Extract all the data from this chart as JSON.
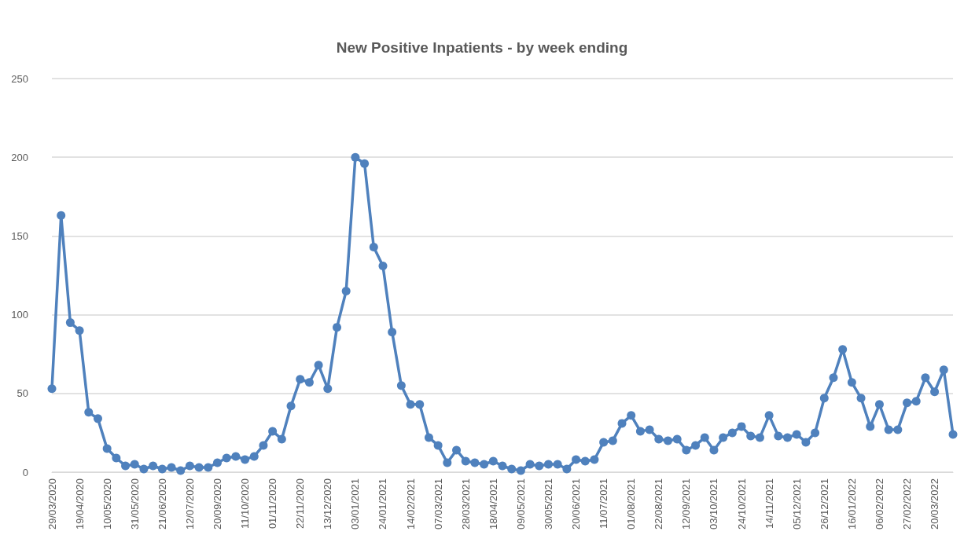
{
  "chart_data": {
    "type": "line",
    "title": "New Positive Inpatients - by week ending",
    "categories": [
      "29/03/2020",
      null,
      null,
      "19/04/2020",
      null,
      null,
      "10/05/2020",
      null,
      null,
      "31/05/2020",
      null,
      null,
      "21/06/2020",
      null,
      null,
      "12/07/2020",
      null,
      null,
      "20/09/2020",
      null,
      null,
      "11/10/2020",
      null,
      null,
      "01/11/2020",
      null,
      null,
      "22/11/2020",
      null,
      null,
      "13/12/2020",
      null,
      null,
      "03/01/2021",
      null,
      null,
      "24/01/2021",
      null,
      null,
      "14/02/2021",
      null,
      null,
      "07/03/2021",
      null,
      null,
      "28/03/2021",
      null,
      null,
      "18/04/2021",
      null,
      null,
      "09/05/2021",
      null,
      null,
      "30/05/2021",
      null,
      null,
      "20/06/2021",
      null,
      null,
      "11/07/2021",
      null,
      null,
      "01/08/2021",
      null,
      null,
      "22/08/2021",
      null,
      null,
      "12/09/2021",
      null,
      null,
      "03/10/2021",
      null,
      null,
      "24/10/2021",
      null,
      null,
      "14/11/2021",
      null,
      null,
      "05/12/2021",
      null,
      null,
      "26/12/2021",
      null,
      null,
      "16/01/2022",
      null,
      null,
      "06/02/2022",
      null,
      null,
      "27/02/2022",
      null,
      null,
      "20/03/2022",
      null,
      null
    ],
    "series": [
      {
        "color": "#4f81bd",
        "values": [
          53,
          163,
          95,
          90,
          38,
          34,
          15,
          9,
          4,
          5,
          2,
          4,
          2,
          3,
          1,
          4,
          3,
          3,
          6,
          9,
          10,
          8,
          10,
          17,
          26,
          21,
          42,
          59,
          57,
          68,
          53,
          92,
          115,
          200,
          196,
          143,
          131,
          89,
          55,
          43,
          43,
          22,
          17,
          6,
          14,
          7,
          6,
          5,
          7,
          4,
          2,
          1,
          5,
          4,
          5,
          5,
          2,
          8,
          7,
          8,
          19,
          20,
          31,
          36,
          26,
          27,
          21,
          20,
          21,
          14,
          17,
          22,
          14,
          22,
          25,
          29,
          23,
          22,
          36,
          23,
          22,
          24,
          19,
          25,
          47,
          60,
          78,
          57,
          47,
          29,
          43,
          27,
          27,
          44,
          45,
          60,
          51,
          65,
          24
        ]
      }
    ],
    "ylim": [
      0,
      250
    ],
    "yticks": [
      0,
      50,
      100,
      150,
      200,
      250
    ],
    "grid": "y",
    "marker": "circle",
    "line_style": "solid"
  }
}
